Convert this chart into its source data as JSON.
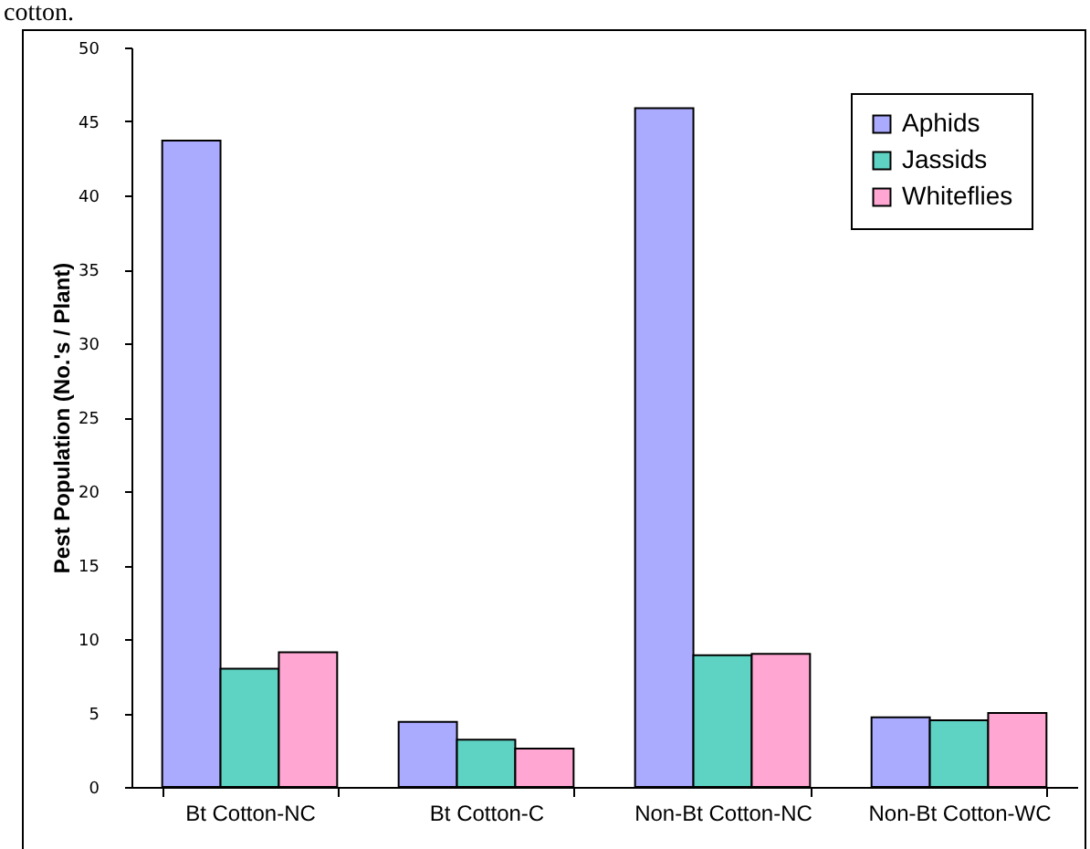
{
  "chart_data": {
    "type": "bar",
    "annotations": [
      "cotton."
    ],
    "ylabel": "Pest Population (No.'s / Plant)",
    "categories": [
      "Bt Cotton-NC",
      "Bt Cotton-C",
      "Non-Bt Cotton-NC",
      "Non-Bt Cotton-WC"
    ],
    "series": [
      {
        "name": "Aphids",
        "color": "#aaaaff",
        "values": [
          43.7,
          4.4,
          45.9,
          4.7
        ]
      },
      {
        "name": "Jassids",
        "color": "#5fd3c3",
        "values": [
          8.0,
          3.2,
          8.9,
          4.5
        ]
      },
      {
        "name": "Whiteflies",
        "color": "#ffa6d2",
        "values": [
          9.1,
          2.6,
          9.0,
          5.0
        ]
      }
    ],
    "ylim": [
      0,
      50
    ],
    "yticks": [
      0,
      5,
      10,
      15,
      20,
      25,
      30,
      35,
      40,
      45,
      50
    ],
    "grid": false,
    "legend": "top right"
  }
}
